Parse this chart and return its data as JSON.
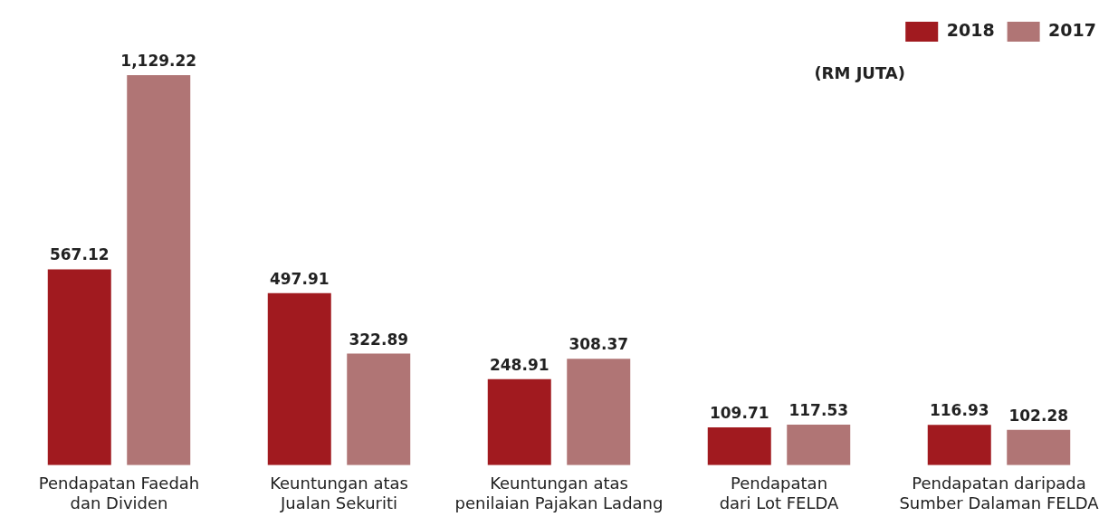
{
  "chart_data": {
    "type": "bar",
    "categories": [
      "Pendapatan Faedah dan Dividen",
      "Keuntungan atas Jualan Sekuriti",
      "Keuntungan atas penilaian Pajakan Ladang",
      "Pendapatan dari Lot FELDA",
      "Pendapatan daripada Sumber Dalaman FELDA"
    ],
    "series": [
      {
        "name": "2018",
        "color": "#a11a1f",
        "values": [
          567.12,
          497.91,
          248.91,
          109.71,
          116.93
        ],
        "value_labels": [
          "567.12",
          "497.91",
          "248.91",
          "109.71",
          "116.93"
        ]
      },
      {
        "name": "2017",
        "color": "#b07575",
        "values": [
          1129.22,
          322.89,
          308.37,
          117.53,
          102.28
        ],
        "value_labels": [
          "1,129.22",
          "322.89",
          "308.37",
          "117.53",
          "102.28"
        ]
      }
    ],
    "legend": "top right",
    "grid": false,
    "tick_labels": "x",
    "annotations": [
      "(RM JUTA)"
    ]
  }
}
